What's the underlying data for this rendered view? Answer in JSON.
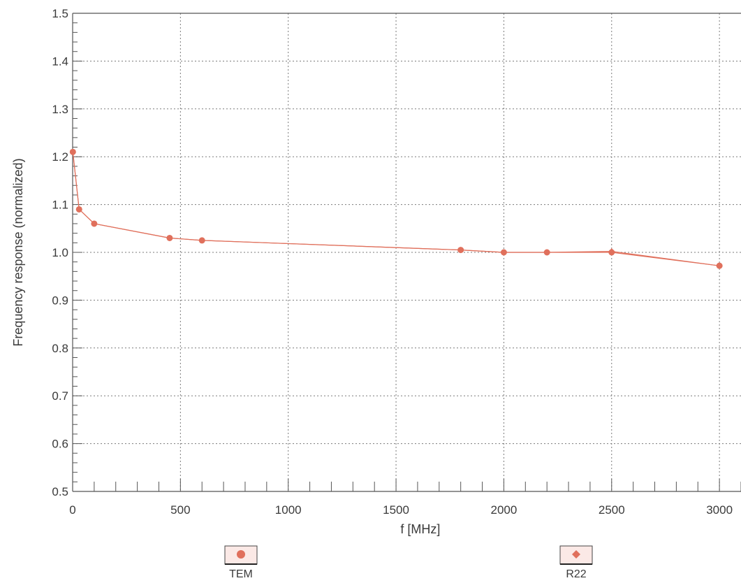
{
  "chart_data": {
    "type": "line",
    "title": "",
    "xlabel": "f [MHz]",
    "ylabel": "Frequency response (normalized)",
    "xlim": [
      0,
      3100
    ],
    "ylim": [
      0.5,
      1.5
    ],
    "x_ticks": [
      0,
      500,
      1000,
      1500,
      2000,
      2500,
      3000
    ],
    "x_tick_labels": [
      "0",
      "500",
      "1000",
      "1500",
      "2000",
      "2500",
      "3000"
    ],
    "y_ticks": [
      0.5,
      0.6,
      0.7,
      0.8,
      0.9,
      1.0,
      1.1,
      1.2,
      1.3,
      1.4,
      1.5
    ],
    "y_tick_labels": [
      "0.5",
      "0.6",
      "0.7",
      "0.8",
      "0.9",
      "1.0",
      "1.1",
      "1.2",
      "1.3",
      "1.4",
      "1.5"
    ],
    "grid": true,
    "legend_position": "bottom",
    "series": [
      {
        "name": "TEM",
        "marker": "circle",
        "color": "#e0705c",
        "x": [
          1,
          30,
          100,
          450,
          600,
          1800,
          2000,
          2200,
          2500,
          3000
        ],
        "y": [
          1.21,
          1.09,
          1.06,
          1.03,
          1.025,
          1.005,
          1.0,
          1.0,
          1.0,
          0.972
        ]
      },
      {
        "name": "R22",
        "marker": "diamond",
        "color": "#e0705c",
        "x": [
          1,
          30,
          100,
          450,
          600,
          1800,
          2000,
          2200,
          2500,
          3000
        ],
        "y": [
          1.21,
          1.09,
          1.06,
          1.03,
          1.025,
          1.005,
          1.0,
          1.0,
          1.002,
          0.972
        ]
      }
    ]
  }
}
